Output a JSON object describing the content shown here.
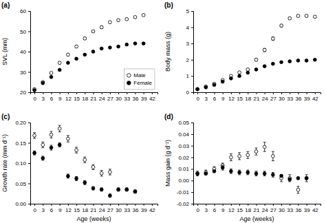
{
  "chart_data": [
    {
      "type": "scatter",
      "title": "(a)",
      "ylabel": "SVL (mm)",
      "x": [
        0,
        3,
        6,
        9,
        12,
        15,
        18,
        21,
        24,
        27,
        30,
        33,
        36,
        39
      ],
      "xlim": [
        -1.5,
        44
      ],
      "xticks": [
        0,
        3,
        6,
        9,
        12,
        15,
        18,
        21,
        24,
        27,
        30,
        33,
        36,
        39,
        42
      ],
      "ylim": [
        20,
        60
      ],
      "yticks": [
        20,
        30,
        40,
        50,
        60
      ],
      "legend": "lower right",
      "series": [
        {
          "name": "Male",
          "color": "black",
          "marker": "open-circle",
          "values": [
            21.5,
            25.0,
            29.5,
            34.5,
            38.5,
            42.5,
            46.5,
            50.0,
            52.0,
            54.5,
            55.5,
            56.0,
            57.0,
            58.0
          ],
          "error": [
            0.3,
            0.4,
            0.5,
            0.6,
            0.5,
            0.5,
            0.6,
            0.5,
            0.6,
            0.5,
            0.5,
            0.5,
            0.5,
            0.5
          ]
        },
        {
          "name": "Female",
          "color": "black",
          "marker": "circle",
          "values": [
            21.0,
            24.5,
            27.5,
            31.0,
            34.5,
            36.5,
            38.5,
            40.0,
            41.5,
            42.0,
            42.5,
            43.5,
            44.0,
            44.0
          ],
          "error": [
            0.3,
            0.3,
            0.4,
            0.4,
            0.4,
            0.4,
            0.4,
            0.4,
            0.4,
            0.4,
            0.4,
            0.4,
            0.4,
            0.4
          ]
        }
      ]
    },
    {
      "type": "scatter",
      "title": "(b)",
      "ylabel": "Body mass (g)",
      "x": [
        0,
        3,
        6,
        9,
        12,
        15,
        18,
        21,
        24,
        27,
        30,
        33,
        36,
        39,
        42
      ],
      "xlim": [
        -1.5,
        44
      ],
      "xticks": [
        0,
        3,
        6,
        9,
        12,
        15,
        18,
        21,
        24,
        27,
        30,
        33,
        36,
        39,
        42
      ],
      "ylim": [
        0,
        5
      ],
      "yticks": [
        0,
        1,
        2,
        3,
        4,
        5
      ],
      "series": [
        {
          "color": "black",
          "marker": "open-circle",
          "values": [
            0.2,
            0.35,
            0.52,
            0.75,
            1.0,
            1.22,
            1.4,
            2.0,
            2.6,
            3.3,
            4.1,
            4.55,
            4.7,
            4.7,
            4.65
          ],
          "error": [
            0.02,
            0.03,
            0.04,
            0.04,
            0.05,
            0.06,
            0.07,
            0.08,
            0.1,
            0.1,
            0.08,
            0.06,
            0.07,
            0.07,
            0.07
          ]
        },
        {
          "color": "black",
          "marker": "circle",
          "values": [
            0.18,
            0.3,
            0.45,
            0.65,
            0.85,
            1.0,
            1.2,
            1.4,
            1.6,
            1.75,
            1.85,
            1.9,
            1.95,
            1.95,
            2.0
          ],
          "error": [
            0.01,
            0.02,
            0.02,
            0.03,
            0.03,
            0.04,
            0.04,
            0.05,
            0.05,
            0.05,
            0.05,
            0.05,
            0.05,
            0.05,
            0.05
          ]
        }
      ]
    },
    {
      "type": "scatter",
      "title": "(c)",
      "xlabel": "Age (weeks)",
      "ylabel": "Growth rate (mm d⁻¹)",
      "x": [
        0,
        3,
        6,
        9,
        12,
        15,
        18,
        21,
        24,
        27,
        30,
        33,
        36
      ],
      "xlim": [
        -1.5,
        44
      ],
      "xticks": [
        0,
        3,
        6,
        9,
        12,
        15,
        18,
        21,
        24,
        27,
        30,
        33,
        36,
        39,
        42
      ],
      "ylim": [
        0,
        0.2
      ],
      "yticks": [
        {
          "value": 0,
          "label": "0.00"
        },
        0.05,
        {
          "value": 0.1,
          "label": "0.10"
        },
        0.15,
        {
          "value": 0.2,
          "label": "0.20"
        }
      ],
      "series": [
        {
          "color": "black",
          "marker": "open-circle",
          "values": [
            0.168,
            0.145,
            0.17,
            0.185,
            0.16,
            0.132,
            0.108,
            0.09,
            0.075,
            0.078,
            0.035,
            0.035,
            0.03
          ],
          "error": [
            0.007,
            0.007,
            0.008,
            0.008,
            0.008,
            0.007,
            0.007,
            0.006,
            0.007,
            0.007,
            0.004,
            0.004,
            0.004
          ]
        },
        {
          "color": "black",
          "marker": "circle",
          "values": [
            0.125,
            0.112,
            0.138,
            0.145,
            0.068,
            0.062,
            0.052,
            0.038,
            0.035,
            0.02,
            0.035,
            0.035,
            0.03
          ],
          "error": [
            0.005,
            0.005,
            0.006,
            0.005,
            0.005,
            0.005,
            0.005,
            0.004,
            0.004,
            0.004,
            0.003,
            0.003,
            0.003
          ]
        }
      ]
    },
    {
      "type": "scatter",
      "title": "(d)",
      "xlabel": "Age (weeks)",
      "ylabel": "Mass gain (g d⁻¹)",
      "x": [
        0,
        3,
        6,
        9,
        12,
        15,
        18,
        21,
        24,
        27,
        30,
        33,
        36,
        39
      ],
      "xlim": [
        -1.5,
        44
      ],
      "xticks": [
        0,
        3,
        6,
        9,
        12,
        15,
        18,
        21,
        24,
        27,
        30,
        33,
        36,
        39,
        42
      ],
      "ylim": [
        -0.02,
        0.05
      ],
      "yticks": [
        -0.02,
        -0.01,
        {
          "value": 0,
          "label": "0.00"
        },
        0.01,
        0.02,
        0.03,
        0.04,
        0.05
      ],
      "series": [
        {
          "color": "black",
          "marker": "open-circle",
          "values": [
            0.006,
            0.007,
            0.01,
            0.013,
            0.02,
            0.021,
            0.022,
            0.025,
            0.029,
            0.021,
            0.002,
            0.002,
            -0.008,
            0.002
          ],
          "error": [
            0.002,
            0.002,
            0.002,
            0.002,
            0.003,
            0.003,
            0.003,
            0.003,
            0.004,
            0.004,
            0.003,
            0.003,
            0.003,
            0.003
          ]
        },
        {
          "color": "black",
          "marker": "circle",
          "values": [
            0.006,
            0.006,
            0.008,
            0.011,
            0.008,
            0.007,
            0.007,
            0.006,
            0.006,
            0.005,
            0.004,
            0.001,
            0.002,
            0.002
          ],
          "error": [
            0.001,
            0.001,
            0.001,
            0.002,
            0.002,
            0.002,
            0.002,
            0.002,
            0.002,
            0.002,
            0.001,
            0.001,
            0.001,
            0.001
          ]
        }
      ]
    }
  ]
}
